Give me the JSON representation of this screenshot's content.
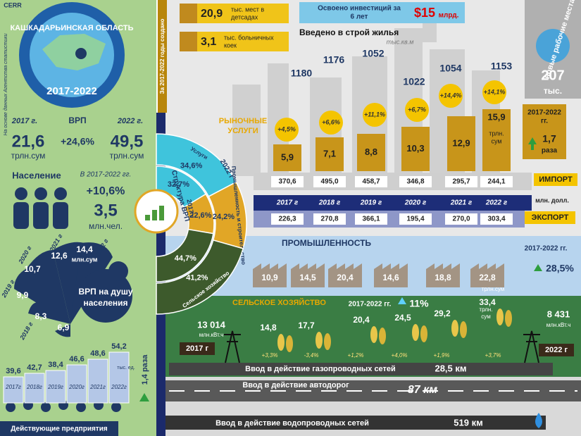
{
  "left": {
    "logo": "CERR",
    "region": "КАШКАДАРЬИНСКАЯ ОБЛАСТЬ",
    "period": "2017-2022",
    "source": "На основе данных Агентства статистики",
    "gdp": {
      "year_start": "2017 г.",
      "label": "ВРП",
      "year_end": "2022 г.",
      "start_value": "21,6",
      "start_unit": "трлн.сум",
      "growth": "+24,6%",
      "end_value": "49,5",
      "end_unit": "трлн.сум"
    },
    "population": {
      "label": "Население",
      "period": "В 2017-2022 гг.",
      "growth": "+10,6%",
      "value": "3,5",
      "unit": "млн.чел."
    },
    "gdp_per_capita": {
      "label_lines": [
        "ВРП на душу",
        "населения"
      ],
      "unit": "млн.сум",
      "years": [
        null,
        "2018 г",
        "2019 г",
        "2020 г",
        "2021 г",
        "2022 г"
      ],
      "values": [
        "6,9",
        "8,3",
        "9,9",
        "10,7",
        "12,6",
        "14,4"
      ]
    },
    "enterprises": {
      "label": "Действующие предприятия",
      "years": [
        "2017г",
        "2018г",
        "2019г",
        "2020г",
        "2021г",
        "2022г"
      ],
      "values": [
        "39,6",
        "42,7",
        "38,4",
        "46,6",
        "48,6",
        "54,2"
      ],
      "unit": "тыс. ед.",
      "growth": "1,4 раза"
    }
  },
  "created": "За 2017-2022 годы создано",
  "kindergarten": {
    "value": "20,9",
    "label_lines": [
      "тыс. мест в",
      "детсадах"
    ]
  },
  "hospital": {
    "value": "3,1",
    "label_lines": [
      "тыс. больничных",
      "коек"
    ]
  },
  "investment": {
    "label_lines": [
      "Освоено инвестиций за",
      "6 лет"
    ],
    "value": "$15",
    "unit": "млрд."
  },
  "housing": {
    "title": "Введено в строй жилья",
    "unit": "тыс.кв.м",
    "values": [
      "1180",
      "1176",
      "1052",
      "1022",
      "1054",
      "1153"
    ]
  },
  "jobs": {
    "title": "новые рабочие места",
    "value": "207",
    "unit": "тыс."
  },
  "market_services": {
    "title_lines": [
      "РЫНОЧНЫЕ",
      "УСЛУГИ"
    ],
    "values": [
      "5,9",
      "7,1",
      "8,8",
      "10,3",
      "12,9",
      "15,9"
    ],
    "growth": [
      "+4,5%",
      "+6,6%",
      "+11,1%",
      "+6,7%",
      "+14,4%",
      "+14,1%"
    ],
    "unit_lines": [
      "трлн.",
      "сум"
    ],
    "period_lines": [
      "2017-2022",
      "гг."
    ],
    "total_growth": "1,7",
    "total_unit": "раза"
  },
  "trade": {
    "import_label": "ИМПОРТ",
    "export_label": "ЭКСПОРТ",
    "unit": "млн. долл.",
    "years": [
      "2017 г",
      "2018 г",
      "2019 г",
      "2020 г",
      "2021 г",
      "2022 г"
    ],
    "import": [
      "370,6",
      "495,0",
      "458,7",
      "346,8",
      "295,7",
      "244,1"
    ],
    "export": [
      "226,3",
      "270,8",
      "366,1",
      "195,4",
      "270,0",
      "303,4"
    ]
  },
  "gdp_structure": {
    "title": "Структура ВРП",
    "year_inner": "2017 г",
    "year_outer": "2022 г",
    "sectors": [
      {
        "name": "Услуги",
        "color": "#3fc4dc",
        "y2017": {
          "value": 32.7,
          "label": "32,7%"
        },
        "y2022": {
          "value": 34.6,
          "label": "34,6%"
        }
      },
      {
        "name": "Промышленность и строительство",
        "color": "#e1a626",
        "y2017": {
          "value": 22.6,
          "label": "22,6%"
        },
        "y2022": {
          "value": 24.2,
          "label": "24,2%"
        }
      },
      {
        "name": "Сельское хозяйство",
        "color": "#3d5a2c",
        "y2017": {
          "value": 44.7,
          "label": "44,7%"
        },
        "y2022": {
          "value": 41.2,
          "label": "41,2%"
        }
      }
    ]
  },
  "industry": {
    "title": "ПРОМЫШЛЕННОСТЬ",
    "values": [
      "10,9",
      "14,5",
      "20,4",
      "14,6",
      "18,8",
      "22,8"
    ],
    "unit": "трлн.сум",
    "period": "2017-2022 гг.",
    "growth": "28,5%"
  },
  "agriculture": {
    "title": "СЕЛЬСКОЕ ХОЗЯЙСТВО",
    "period": "2017-2022 гг.",
    "growth": "11%",
    "values": [
      "14,8",
      "17,7",
      "20,4",
      "24,5",
      "29,2",
      "33,4"
    ],
    "growth_rates": [
      "+3,3%",
      "-3,4%",
      "+1,2%",
      "+4,0%",
      "+1,9%",
      "+3,7%"
    ],
    "unit_lines": [
      "трлн.",
      "сум"
    ]
  },
  "electricity": {
    "start_value": "13 014",
    "start_unit": "млн.кВт.ч",
    "end_value": "8 431",
    "end_unit": "млн.кВт.ч",
    "start_year": "2017 г",
    "end_year": "2022 г"
  },
  "gas": {
    "label": "Ввод в действие газопроводных сетей",
    "value": "28,5 км"
  },
  "roads": {
    "label": "Ввод в действие автодорог",
    "value": "87 км"
  },
  "water": {
    "label": "Ввод в действие водопроводных сетей",
    "value": "519 км"
  }
}
